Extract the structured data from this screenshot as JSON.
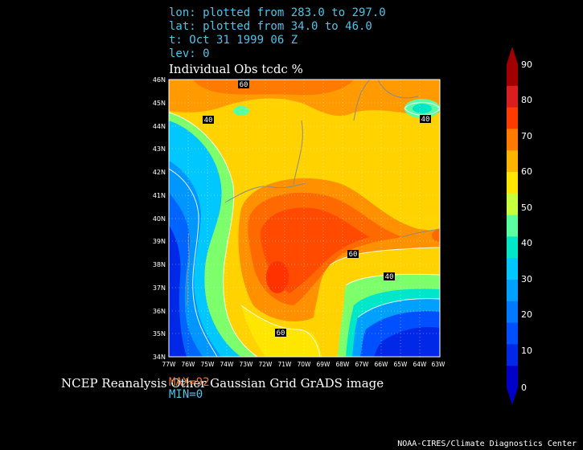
{
  "header": {
    "lon": "lon: plotted from 283.0 to 297.0",
    "lat": "lat: plotted from 34.0 to 46.0",
    "time": "t: Oct 31 1999 06 Z",
    "lev": "lev: 0"
  },
  "title": "Individual Obs tcdc %",
  "footer": {
    "text": "NCEP Reanalysis Other Gaussian Grid GrADS image",
    "max_label": "MAX=92",
    "min_label": "MIN=0",
    "credit": "NOAA-CIRES/Climate Diagnostics Center"
  },
  "map": {
    "lat_labels": [
      "46N",
      "45N",
      "44N",
      "43N",
      "42N",
      "41N",
      "40N",
      "39N",
      "38N",
      "37N",
      "36N",
      "35N",
      "34N"
    ],
    "lon_labels": [
      "77W",
      "76W",
      "75W",
      "74W",
      "73W",
      "72W",
      "71W",
      "70W",
      "69W",
      "68W",
      "67W",
      "66W",
      "65W",
      "64W",
      "63W"
    ],
    "contour_labels": [
      "60",
      "40",
      "40",
      "60",
      "40",
      "60"
    ]
  },
  "colorbar": {
    "ticks": [
      "90",
      "80",
      "70",
      "60",
      "50",
      "40",
      "30",
      "20",
      "10",
      "0"
    ],
    "colors": [
      "#a00000",
      "#d81e1e",
      "#ff3c00",
      "#ff7a00",
      "#ffb400",
      "#ffe600",
      "#c8ff3c",
      "#5affa0",
      "#00e6c8",
      "#00c8ff",
      "#00a0ff",
      "#0078ff",
      "#0050ff",
      "#0028e6",
      "#0000c8"
    ]
  }
}
